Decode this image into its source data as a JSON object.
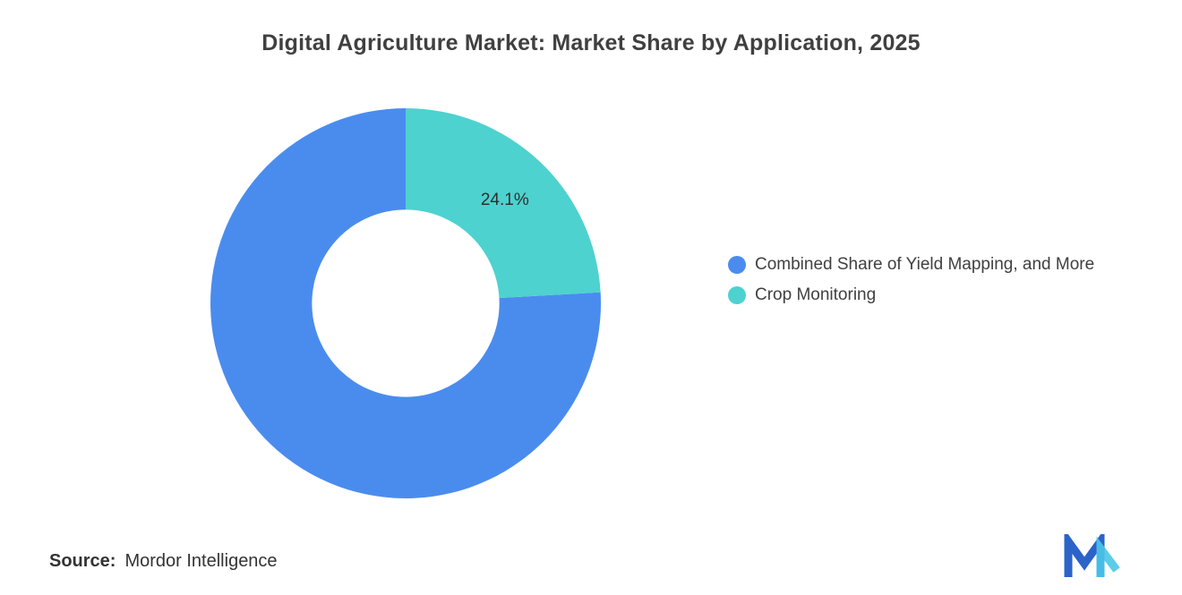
{
  "title": "Digital Agriculture Market: Market Share by Application, 2025",
  "source": {
    "label": "Source:",
    "value": "Mordor Intelligence"
  },
  "logo": {
    "name": "mordor-intelligence-logo",
    "colors": [
      "#2B63C9",
      "#4AC6E9"
    ]
  },
  "chart_data": {
    "type": "pie",
    "subtype": "donut",
    "title": "Digital Agriculture Market: Market Share by Application, 2025",
    "unit": "%",
    "rotation_deg": 86.76,
    "inner_radius_ratio": 0.48,
    "legend_position": "right",
    "slices": [
      {
        "label": "Combined Share of Yield Mapping, and More",
        "value": 75.9,
        "color": "#4A8CEE",
        "label_text": ""
      },
      {
        "label": "Crop Monitoring",
        "value": 24.1,
        "color": "#4DD2CF",
        "label_text": "24.1%"
      }
    ]
  }
}
